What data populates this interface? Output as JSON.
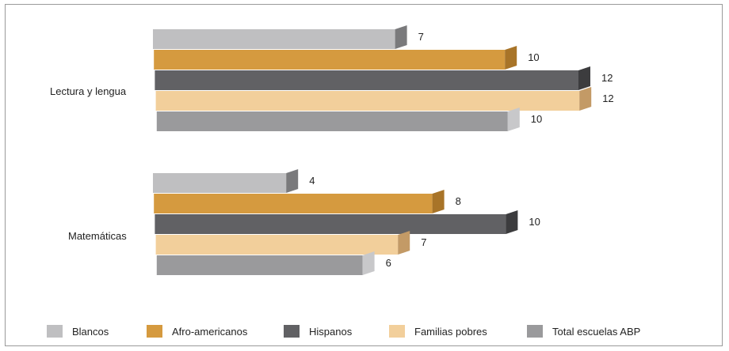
{
  "chart_data": {
    "type": "bar",
    "orientation": "horizontal",
    "categories": [
      "Lectura y lengua",
      "Matemáticas"
    ],
    "series": [
      {
        "name": "Blancos",
        "values": [
          7,
          4
        ],
        "color": "#bfbfc1",
        "side": "#7a7a7c"
      },
      {
        "name": "Afro-americanos",
        "values": [
          10,
          8
        ],
        "color": "#d59a3f",
        "side": "#a87428"
      },
      {
        "name": "Hispanos",
        "values": [
          12,
          10
        ],
        "color": "#616164",
        "side": "#3c3c3e"
      },
      {
        "name": "Familias pobres",
        "values": [
          12,
          7
        ],
        "color": "#f2cf9b",
        "side": "#c39a66"
      },
      {
        "name": "Total escuelas ABP",
        "values": [
          10,
          6
        ],
        "color": "#9a9a9c",
        "side": "#c8c8ca"
      }
    ],
    "xlim": [
      0,
      12
    ],
    "grid": false,
    "legend": "bottom"
  }
}
